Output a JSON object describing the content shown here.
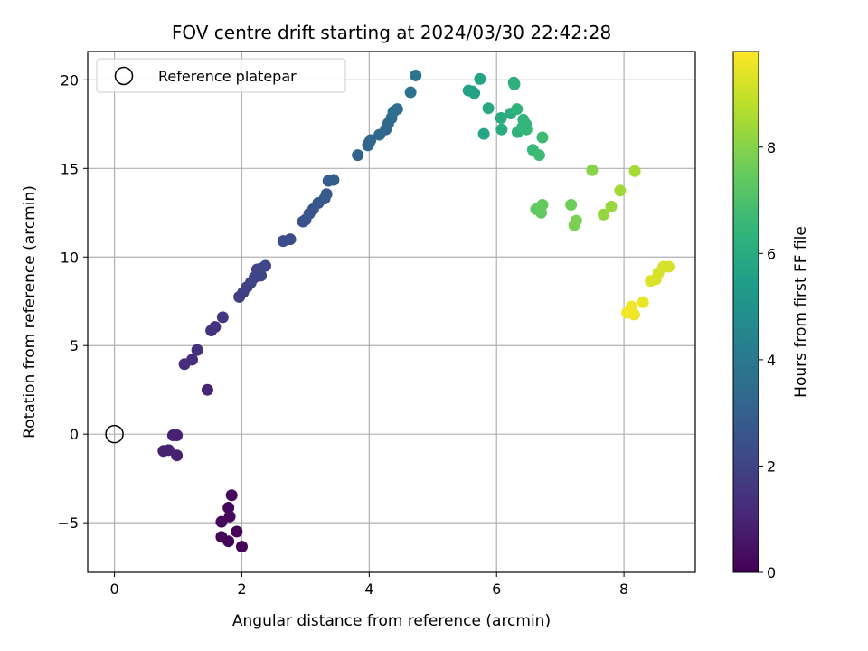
{
  "chart_data": {
    "type": "scatter",
    "title": "FOV centre drift starting at 2024/03/30 22:42:28",
    "xlabel": "Angular distance from reference (arcmin)",
    "ylabel": "Rotation from reference (arcmin)",
    "xlim": [
      -0.42,
      9.12
    ],
    "ylim": [
      -7.8,
      21.6
    ],
    "xticks": [
      0,
      2,
      4,
      6,
      8
    ],
    "yticks": [
      -5,
      0,
      5,
      10,
      15,
      20
    ],
    "grid": true,
    "legend": {
      "placement": "top-left",
      "entries": [
        {
          "label": "Reference platepar",
          "marker": "open-circle"
        }
      ]
    },
    "reference": {
      "x": 0,
      "y": 0
    },
    "colorbar": {
      "label": "Hours from first FF file",
      "min": 0,
      "max": 9.8,
      "ticks": [
        0,
        2,
        4,
        6,
        8
      ],
      "colormap": "viridis"
    },
    "points": [
      {
        "x": 1.84,
        "y": -3.45,
        "c": 0.2
      },
      {
        "x": 1.79,
        "y": -4.15,
        "c": 0.2
      },
      {
        "x": 1.81,
        "y": -4.65,
        "c": 0.2
      },
      {
        "x": 1.68,
        "y": -4.95,
        "c": 0.2
      },
      {
        "x": 1.92,
        "y": -5.5,
        "c": 0.15
      },
      {
        "x": 1.68,
        "y": -5.8,
        "c": 0.15
      },
      {
        "x": 1.79,
        "y": -6.05,
        "c": 0.15
      },
      {
        "x": 2.0,
        "y": -6.35,
        "c": 0.1
      },
      {
        "x": 0.92,
        "y": -0.07,
        "c": 0.9
      },
      {
        "x": 0.98,
        "y": -0.07,
        "c": 0.9
      },
      {
        "x": 0.77,
        "y": -0.95,
        "c": 0.9
      },
      {
        "x": 0.85,
        "y": -0.9,
        "c": 0.9
      },
      {
        "x": 0.98,
        "y": -1.2,
        "c": 0.9
      },
      {
        "x": 1.46,
        "y": 2.5,
        "c": 1.0
      },
      {
        "x": 1.1,
        "y": 3.95,
        "c": 1.3
      },
      {
        "x": 1.22,
        "y": 4.2,
        "c": 1.3
      },
      {
        "x": 1.3,
        "y": 4.75,
        "c": 1.4
      },
      {
        "x": 1.52,
        "y": 5.85,
        "c": 1.5
      },
      {
        "x": 1.58,
        "y": 6.05,
        "c": 1.5
      },
      {
        "x": 1.7,
        "y": 6.6,
        "c": 1.6
      },
      {
        "x": 1.96,
        "y": 7.75,
        "c": 1.8
      },
      {
        "x": 2.02,
        "y": 8.0,
        "c": 1.8
      },
      {
        "x": 2.08,
        "y": 8.3,
        "c": 1.9
      },
      {
        "x": 2.14,
        "y": 8.55,
        "c": 1.9
      },
      {
        "x": 2.2,
        "y": 8.85,
        "c": 2.0
      },
      {
        "x": 2.3,
        "y": 8.95,
        "c": 2.0
      },
      {
        "x": 2.24,
        "y": 9.3,
        "c": 2.0
      },
      {
        "x": 2.3,
        "y": 9.35,
        "c": 2.1
      },
      {
        "x": 2.37,
        "y": 9.5,
        "c": 2.1
      },
      {
        "x": 2.65,
        "y": 10.9,
        "c": 2.3
      },
      {
        "x": 2.76,
        "y": 11.0,
        "c": 2.3
      },
      {
        "x": 2.96,
        "y": 12.0,
        "c": 2.5
      },
      {
        "x": 3.0,
        "y": 12.1,
        "c": 2.5
      },
      {
        "x": 3.06,
        "y": 12.45,
        "c": 2.6
      },
      {
        "x": 3.12,
        "y": 12.7,
        "c": 2.6
      },
      {
        "x": 3.2,
        "y": 13.05,
        "c": 2.7
      },
      {
        "x": 3.3,
        "y": 13.3,
        "c": 2.7
      },
      {
        "x": 3.33,
        "y": 13.55,
        "c": 2.8
      },
      {
        "x": 3.36,
        "y": 14.3,
        "c": 2.8
      },
      {
        "x": 3.44,
        "y": 14.35,
        "c": 2.9
      },
      {
        "x": 3.82,
        "y": 15.75,
        "c": 3.1
      },
      {
        "x": 3.98,
        "y": 16.3,
        "c": 3.2
      },
      {
        "x": 4.0,
        "y": 16.45,
        "c": 3.2
      },
      {
        "x": 4.02,
        "y": 16.6,
        "c": 3.2
      },
      {
        "x": 4.16,
        "y": 16.9,
        "c": 3.3
      },
      {
        "x": 4.26,
        "y": 17.2,
        "c": 3.3
      },
      {
        "x": 4.3,
        "y": 17.55,
        "c": 3.4
      },
      {
        "x": 4.35,
        "y": 17.85,
        "c": 3.4
      },
      {
        "x": 4.38,
        "y": 18.2,
        "c": 3.5
      },
      {
        "x": 4.44,
        "y": 18.35,
        "c": 3.5
      },
      {
        "x": 4.65,
        "y": 19.3,
        "c": 3.7
      },
      {
        "x": 4.73,
        "y": 20.25,
        "c": 3.8
      },
      {
        "x": 5.56,
        "y": 19.4,
        "c": 5.6
      },
      {
        "x": 5.62,
        "y": 19.35,
        "c": 5.6
      },
      {
        "x": 5.65,
        "y": 19.25,
        "c": 5.6
      },
      {
        "x": 5.74,
        "y": 20.05,
        "c": 5.7
      },
      {
        "x": 5.8,
        "y": 16.95,
        "c": 5.8
      },
      {
        "x": 5.87,
        "y": 18.4,
        "c": 5.9
      },
      {
        "x": 6.07,
        "y": 17.85,
        "c": 6.0
      },
      {
        "x": 6.08,
        "y": 17.2,
        "c": 6.0
      },
      {
        "x": 6.22,
        "y": 18.1,
        "c": 6.1
      },
      {
        "x": 6.27,
        "y": 19.85,
        "c": 6.2
      },
      {
        "x": 6.28,
        "y": 19.75,
        "c": 6.2
      },
      {
        "x": 6.32,
        "y": 18.35,
        "c": 6.3
      },
      {
        "x": 6.33,
        "y": 17.05,
        "c": 6.3
      },
      {
        "x": 6.4,
        "y": 17.3,
        "c": 6.4
      },
      {
        "x": 6.42,
        "y": 17.75,
        "c": 6.4
      },
      {
        "x": 6.46,
        "y": 17.5,
        "c": 6.4
      },
      {
        "x": 6.47,
        "y": 17.2,
        "c": 6.5
      },
      {
        "x": 6.57,
        "y": 16.05,
        "c": 6.6
      },
      {
        "x": 6.67,
        "y": 15.75,
        "c": 6.7
      },
      {
        "x": 6.72,
        "y": 16.75,
        "c": 6.7
      },
      {
        "x": 6.62,
        "y": 12.7,
        "c": 7.4
      },
      {
        "x": 6.7,
        "y": 12.5,
        "c": 7.4
      },
      {
        "x": 6.72,
        "y": 12.95,
        "c": 7.4
      },
      {
        "x": 7.17,
        "y": 12.95,
        "c": 7.6
      },
      {
        "x": 7.22,
        "y": 11.8,
        "c": 7.8
      },
      {
        "x": 7.25,
        "y": 12.05,
        "c": 7.8
      },
      {
        "x": 7.5,
        "y": 14.9,
        "c": 8.0
      },
      {
        "x": 7.68,
        "y": 12.4,
        "c": 8.2
      },
      {
        "x": 7.8,
        "y": 12.85,
        "c": 8.3
      },
      {
        "x": 7.94,
        "y": 13.75,
        "c": 8.4
      },
      {
        "x": 8.17,
        "y": 14.85,
        "c": 8.5
      },
      {
        "x": 8.05,
        "y": 6.85,
        "c": 9.7
      },
      {
        "x": 8.12,
        "y": 7.2,
        "c": 9.6
      },
      {
        "x": 8.16,
        "y": 6.75,
        "c": 9.6
      },
      {
        "x": 8.3,
        "y": 7.45,
        "c": 9.5
      },
      {
        "x": 8.42,
        "y": 8.65,
        "c": 9.3
      },
      {
        "x": 8.5,
        "y": 8.75,
        "c": 9.3
      },
      {
        "x": 8.54,
        "y": 9.1,
        "c": 9.2
      },
      {
        "x": 8.62,
        "y": 9.45,
        "c": 9.2
      },
      {
        "x": 8.7,
        "y": 9.45,
        "c": 9.2
      }
    ]
  }
}
